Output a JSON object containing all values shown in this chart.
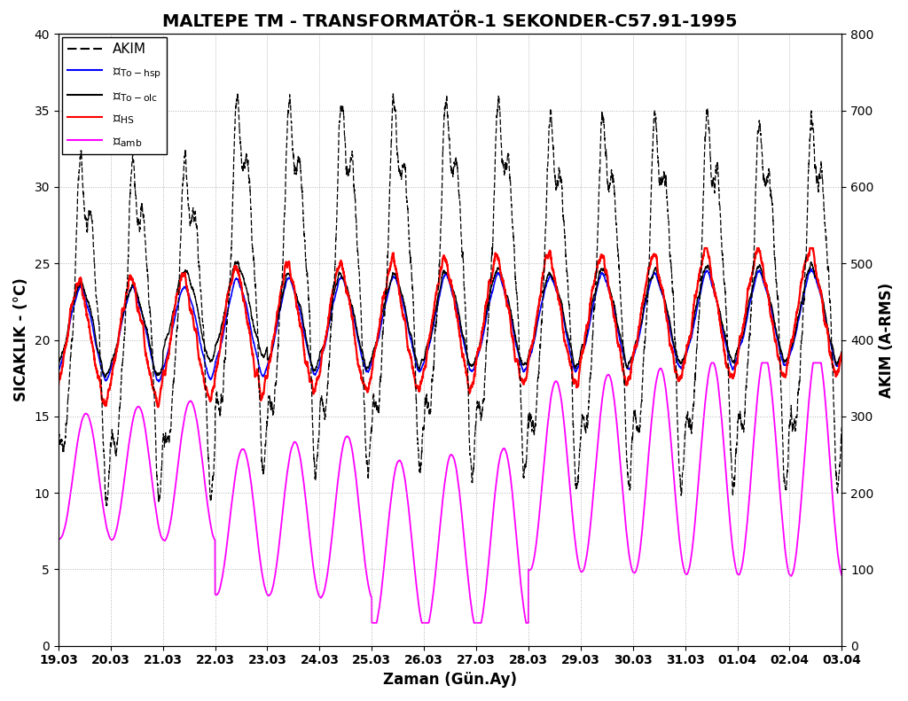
{
  "title": "MALTEPE TM - TRANSFORMATÖR-1 SEKONDER-C57.91-1995",
  "xlabel": "Zaman (Gün.Ay)",
  "ylabel_left": "SICAKLIK - (°C)",
  "ylabel_right": "AKIM (A-RMS)",
  "ylim_left": [
    0,
    40
  ],
  "ylim_right": [
    0,
    800
  ],
  "yticks_left": [
    0,
    5,
    10,
    15,
    20,
    25,
    30,
    35,
    40
  ],
  "yticks_right": [
    0,
    100,
    200,
    300,
    400,
    500,
    600,
    700,
    800
  ],
  "xtick_labels": [
    "19.03",
    "20.03",
    "21.03",
    "22.03",
    "23.03",
    "24.03",
    "25.03",
    "26.03",
    "27.03",
    "28.03",
    "29.03",
    "30.03",
    "31.03",
    "01.04",
    "02.04",
    "03.04"
  ],
  "n_days": 15,
  "color_akim": "#000000",
  "color_To_hsp": "#0000FF",
  "color_To_olc": "#000000",
  "color_HS": "#FF0000",
  "color_amb": "#FF00FF",
  "background_color": "#FFFFFF",
  "grid_color": "#AAAAAA",
  "title_fontsize": 14,
  "label_fontsize": 12,
  "tick_fontsize": 10,
  "legend_fontsize": 11
}
